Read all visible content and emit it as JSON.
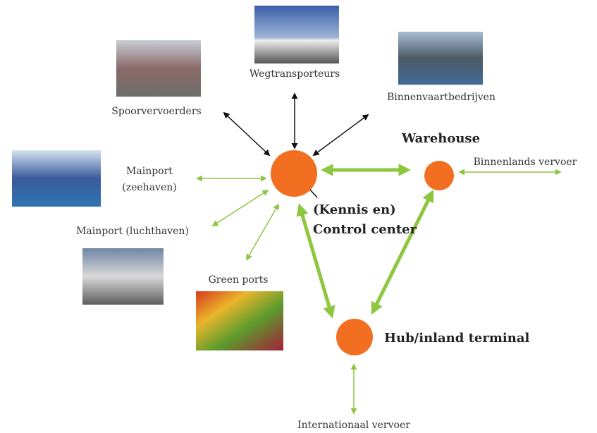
{
  "nodes": [
    {
      "label": [
        "Spoorvervoerders"
      ]
    },
    {
      "label": [
        "Wegtransporteurs"
      ]
    },
    {
      "label": [
        "Binnenvaartbedrijven"
      ]
    },
    {
      "label": [
        "Mainport",
        "(zeehaven)"
      ]
    },
    {
      "label": [
        "Mainport (luchthaven)"
      ]
    },
    {
      "label": [
        "Green ports"
      ]
    },
    {
      "label": [
        "(Kennis en)",
        "Control center"
      ]
    },
    {
      "label": [
        "Warehouse"
      ]
    },
    {
      "label": [
        "Binnenlands vervoer"
      ]
    },
    {
      "label": [
        "Hub/inland terminal"
      ]
    },
    {
      "label": [
        "Internationaal vervoer"
      ]
    }
  ]
}
